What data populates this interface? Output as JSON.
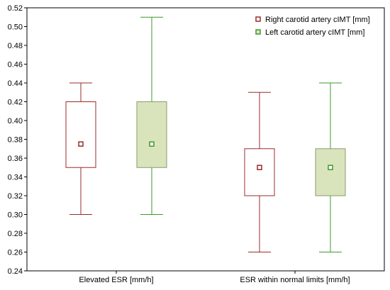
{
  "chart_data": {
    "type": "box",
    "categories": [
      "Elevated ESR [mm/h]",
      "ESR within normal limits [mm/h]"
    ],
    "ylim": [
      0.24,
      0.52
    ],
    "yticks": [
      0.24,
      0.26,
      0.28,
      0.3,
      0.32,
      0.34,
      0.36,
      0.38,
      0.4,
      0.42,
      0.44,
      0.46,
      0.48,
      0.5,
      0.52
    ],
    "grid": false,
    "legend_position": "top-right",
    "series": [
      {
        "name": "Right carotid artery cIMT [mm]",
        "stroke": "#9b2b2b",
        "fill": "#ffffff",
        "values": [
          {
            "min": 0.3,
            "q1": 0.35,
            "median": 0.375,
            "q3": 0.42,
            "max": 0.44
          },
          {
            "min": 0.26,
            "q1": 0.32,
            "median": 0.35,
            "q3": 0.37,
            "max": 0.43
          }
        ]
      },
      {
        "name": "Left carotid artery cIMT [mm]",
        "stroke": "#3c9a2c",
        "fill": "#d9e4bd",
        "box_stroke": "#8a9a6a",
        "values": [
          {
            "min": 0.3,
            "q1": 0.35,
            "median": 0.375,
            "q3": 0.42,
            "max": 0.51
          },
          {
            "min": 0.26,
            "q1": 0.32,
            "median": 0.35,
            "q3": 0.37,
            "max": 0.44
          }
        ]
      }
    ]
  }
}
